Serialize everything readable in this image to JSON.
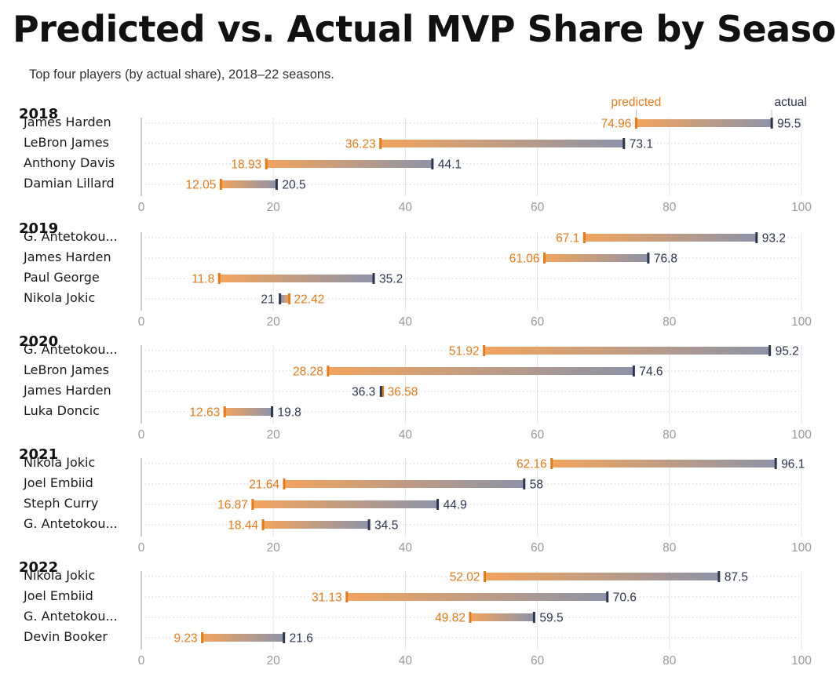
{
  "chart_data": {
    "type": "dumbbell",
    "title": "Predicted vs. Actual MVP Share by Season",
    "subtitle": "Top four players (by actual share), 2018–22 seasons.",
    "legend": {
      "predicted": "predicted",
      "actual": "actual",
      "placement": "top-right"
    },
    "xlim": [
      0,
      100
    ],
    "xticks": [
      0,
      20,
      40,
      60,
      80,
      100
    ],
    "grid": true,
    "colors": {
      "predicted": "#f2a55e",
      "actual": "#2d3550",
      "predicted_text": "#e07b1e"
    },
    "panels": [
      {
        "season": "2018",
        "players": [
          {
            "name": "James Harden",
            "predicted": 74.96,
            "actual": 95.5,
            "predicted_label": "74.96",
            "actual_label": "95.5"
          },
          {
            "name": "LeBron James",
            "predicted": 36.23,
            "actual": 73.1,
            "predicted_label": "36.23",
            "actual_label": "73.1"
          },
          {
            "name": "Anthony Davis",
            "predicted": 18.93,
            "actual": 44.1,
            "predicted_label": "18.93",
            "actual_label": "44.1"
          },
          {
            "name": "Damian Lillard",
            "predicted": 12.05,
            "actual": 20.5,
            "predicted_label": "12.05",
            "actual_label": "20.5"
          }
        ]
      },
      {
        "season": "2019",
        "players": [
          {
            "name": "G. Antetokou...",
            "predicted": 67.1,
            "actual": 93.2,
            "predicted_label": "67.1",
            "actual_label": "93.2"
          },
          {
            "name": "James Harden",
            "predicted": 61.06,
            "actual": 76.8,
            "predicted_label": "61.06",
            "actual_label": "76.8"
          },
          {
            "name": "Paul George",
            "predicted": 11.8,
            "actual": 35.2,
            "predicted_label": "11.8",
            "actual_label": "35.2"
          },
          {
            "name": "Nikola Jokic",
            "predicted": 22.42,
            "actual": 21,
            "predicted_label": "22.42",
            "actual_label": "21"
          }
        ]
      },
      {
        "season": "2020",
        "players": [
          {
            "name": "G. Antetokou...",
            "predicted": 51.92,
            "actual": 95.2,
            "predicted_label": "51.92",
            "actual_label": "95.2"
          },
          {
            "name": "LeBron James",
            "predicted": 28.28,
            "actual": 74.6,
            "predicted_label": "28.28",
            "actual_label": "74.6"
          },
          {
            "name": "James Harden",
            "predicted": 36.58,
            "actual": 36.3,
            "predicted_label": "36.58",
            "actual_label": "36.3"
          },
          {
            "name": "Luka Doncic",
            "predicted": 12.63,
            "actual": 19.8,
            "predicted_label": "12.63",
            "actual_label": "19.8"
          }
        ]
      },
      {
        "season": "2021",
        "players": [
          {
            "name": "Nikola Jokic",
            "predicted": 62.16,
            "actual": 96.1,
            "predicted_label": "62.16",
            "actual_label": "96.1"
          },
          {
            "name": "Joel Embiid",
            "predicted": 21.64,
            "actual": 58,
            "predicted_label": "21.64",
            "actual_label": "58"
          },
          {
            "name": "Steph Curry",
            "predicted": 16.87,
            "actual": 44.9,
            "predicted_label": "16.87",
            "actual_label": "44.9"
          },
          {
            "name": "G. Antetokou...",
            "predicted": 18.44,
            "actual": 34.5,
            "predicted_label": "18.44",
            "actual_label": "34.5"
          }
        ]
      },
      {
        "season": "2022",
        "players": [
          {
            "name": "Nikola Jokic",
            "predicted": 52.02,
            "actual": 87.5,
            "predicted_label": "52.02",
            "actual_label": "87.5"
          },
          {
            "name": "Joel Embiid",
            "predicted": 31.13,
            "actual": 70.6,
            "predicted_label": "31.13",
            "actual_label": "70.6"
          },
          {
            "name": "G. Antetokou...",
            "predicted": 49.82,
            "actual": 59.5,
            "predicted_label": "49.82",
            "actual_label": "59.5"
          },
          {
            "name": "Devin Booker",
            "predicted": 9.23,
            "actual": 21.6,
            "predicted_label": "9.23",
            "actual_label": "21.6"
          }
        ]
      }
    ]
  }
}
